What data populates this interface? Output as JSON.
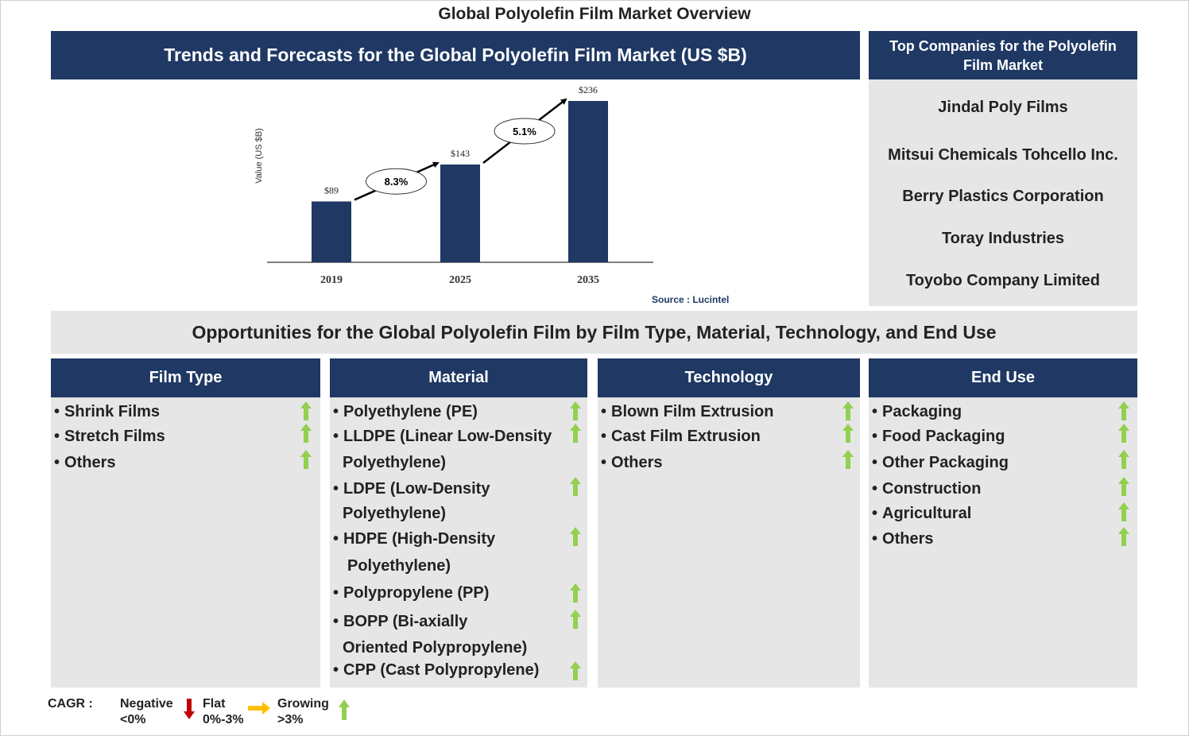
{
  "title": "Global Polyolefin Film Market Overview",
  "chart_header": "Trends and Forecasts for the Global Polyolefin Film Market (US $B)",
  "companies": {
    "header": "Top Companies for the Polyolefin Film Market",
    "items": [
      "Jindal Poly Films",
      "Mitsui Chemicals Tohcello Inc.",
      "Berry Plastics Corporation",
      "Toray Industries",
      "Toyobo Company Limited"
    ]
  },
  "chart_data": {
    "type": "bar",
    "title": "Trends and Forecasts for the Global Polyolefin Film Market (US $B)",
    "categories": [
      "2019",
      "2025",
      "2035"
    ],
    "values": [
      89,
      143,
      236
    ],
    "value_labels": [
      "$89",
      "$143",
      "$236"
    ],
    "ylabel": "Value (US $B)",
    "xlabel": "",
    "ylim": [
      0,
      236
    ],
    "bar_color": "#1f3864",
    "cagr": [
      {
        "from": "2019",
        "to": "2025",
        "label": "8.3%"
      },
      {
        "from": "2025",
        "to": "2035",
        "label": "5.1%"
      }
    ],
    "source": "Source : Lucintel"
  },
  "opportunities_title": "Opportunities for the Global Polyolefin Film by Film Type, Material, Technology, and End Use",
  "columns": [
    {
      "header": "Film Type",
      "items": [
        "Shrink Films",
        "Stretch Films",
        "Others"
      ]
    },
    {
      "header": "Material",
      "items": [
        "Polyethylene (PE)",
        "LLDPE (Linear Low-Density",
        "LDPE (Low-Density",
        "HDPE (High-Density",
        "Polypropylene (PP)",
        "BOPP (Bi-axially",
        "CPP (Cast Polypropylene)"
      ],
      "continuations": [
        "Polyethylene)",
        "Polyethylene)",
        "Polyethylene)",
        "Oriented Polypropylene)"
      ]
    },
    {
      "header": "Technology",
      "items": [
        "Blown Film Extrusion",
        "Cast Film Extrusion",
        "Others"
      ]
    },
    {
      "header": "End Use",
      "items": [
        "Packaging",
        "Food Packaging",
        "Other Packaging",
        "Construction",
        "Agricultural",
        "Others"
      ]
    }
  ],
  "legend": {
    "label": "CAGR :",
    "negative": "Negative",
    "negative_range": "<0%",
    "flat": "Flat",
    "flat_range": "0%-3%",
    "growing": "Growing",
    "growing_range": ">3%"
  },
  "colors": {
    "navy": "#1f3864",
    "panel": "#e7e6e6",
    "up": "#92d050",
    "down": "#c00000",
    "flat": "#ffc000"
  }
}
